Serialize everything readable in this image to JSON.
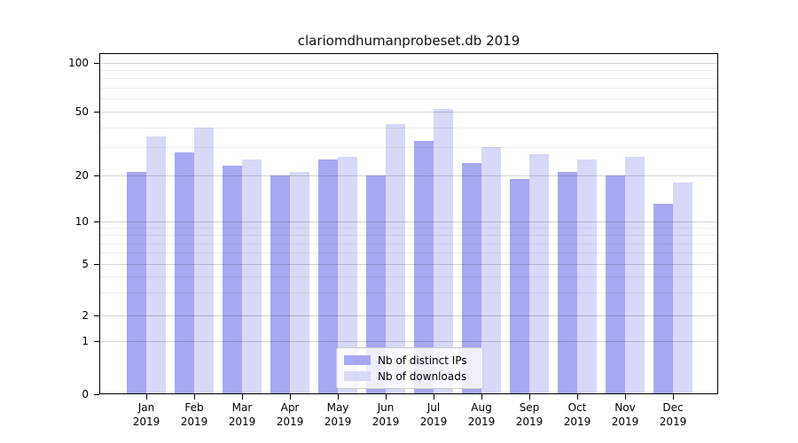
{
  "chart_data": {
    "type": "bar",
    "title": "clariomdhumanprobeset.db 2019",
    "yscale": "symlog",
    "grid": true,
    "categories": [
      "Jan 2019",
      "Feb 2019",
      "Mar 2019",
      "Apr 2019",
      "May 2019",
      "Jun 2019",
      "Jul 2019",
      "Aug 2019",
      "Sep 2019",
      "Oct 2019",
      "Nov 2019",
      "Dec 2019"
    ],
    "series": [
      {
        "name": "Nb of distinct IPs",
        "color": "#a8a8f2",
        "values": [
          21,
          28,
          23,
          20,
          25,
          20,
          33,
          24,
          19,
          21,
          20,
          13
        ]
      },
      {
        "name": "Nb of downloads",
        "color": "#d8d8f8",
        "values": [
          35,
          40,
          25,
          21,
          26,
          42,
          52,
          30,
          27,
          25,
          26,
          18
        ]
      }
    ],
    "yticks": [
      0,
      1,
      2,
      5,
      10,
      20,
      50,
      100
    ],
    "minor_gridlines": [
      3,
      4,
      6,
      7,
      8,
      9,
      30,
      40,
      60,
      70,
      80,
      90
    ],
    "ylim": [
      0,
      117
    ],
    "xlabel": "",
    "ylabel": "",
    "legend_position": "lower center inside"
  }
}
